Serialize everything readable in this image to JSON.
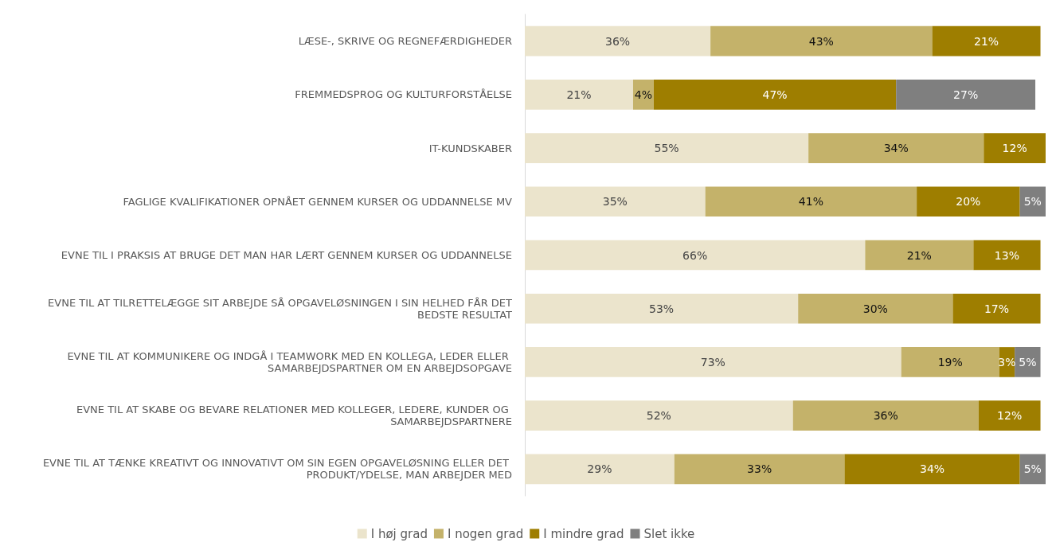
{
  "chart_data": {
    "type": "bar",
    "orientation": "horizontal",
    "stacked": true,
    "legend": "bottom",
    "categories": [
      "LÆSE-, SKRIVE OG REGNEFÆRDIGHEDER",
      "FREMMEDSPROG OG KULTURFORSTÅELSE",
      "IT-KUNDSKABER",
      "FAGLIGE KVALIFIKATIONER OPNÅET GENNEM KURSER OG UDDANNELSE MV",
      "EVNE TIL I PRAKSIS AT BRUGE DET MAN HAR LÆRT GENNEM KURSER OG UDDANNELSE",
      "EVNE TIL AT TILRETTELÆGGE SIT ARBEJDE SÅ OPGAVELØSNINGEN I SIN HELHED FÅR DET BEDSTE RESULTAT",
      "EVNE TIL AT KOMMUNIKERE OG INDGÅ I TEAMWORK MED EN KOLLEGA, LEDER ELLER SAMARBEJDSPARTNER OM EN ARBEJDSOPGAVE",
      "EVNE TIL AT SKABE OG BEVARE RELATIONER MED KOLLEGER, LEDERE, KUNDER OG SAMARBEJDSPARTNERE",
      "EVNE TIL AT TÆNKE KREATIVT OG INNOVATIVT OM SIN EGEN OPGAVELØSNING ELLER DET PRODUKT/YDELSE, MAN ARBEJDER MED"
    ],
    "series": [
      {
        "name": "I høj grad",
        "color": "#ebe4cc",
        "values": [
          36,
          21,
          55,
          35,
          66,
          53,
          73,
          52,
          29
        ],
        "value_labels": [
          "36%",
          "21%",
          "55%",
          "35%",
          "66%",
          "53%",
          "73%",
          "52%",
          "29%"
        ]
      },
      {
        "name": "I nogen grad",
        "color": "#c4b26a",
        "values": [
          43,
          4,
          34,
          41,
          21,
          30,
          19,
          36,
          33
        ],
        "value_labels": [
          "43%",
          "4%",
          "34%",
          "41%",
          "21%",
          "30%",
          "19%",
          "36%",
          "33%"
        ]
      },
      {
        "name": "I mindre grad",
        "color": "#9e7e00",
        "values": [
          21,
          47,
          12,
          20,
          13,
          17,
          3,
          12,
          34
        ],
        "value_labels": [
          "21%",
          "47%",
          "12%",
          "20%",
          "13%",
          "17%",
          "3%",
          "12%",
          "34%"
        ]
      },
      {
        "name": "Slet ikke",
        "color": "#7f7f7f",
        "values": [
          null,
          27,
          null,
          5,
          null,
          null,
          5,
          null,
          5
        ],
        "value_labels": [
          null,
          "27%",
          null,
          "5%",
          null,
          null,
          "5%",
          null,
          "5%"
        ]
      }
    ]
  }
}
